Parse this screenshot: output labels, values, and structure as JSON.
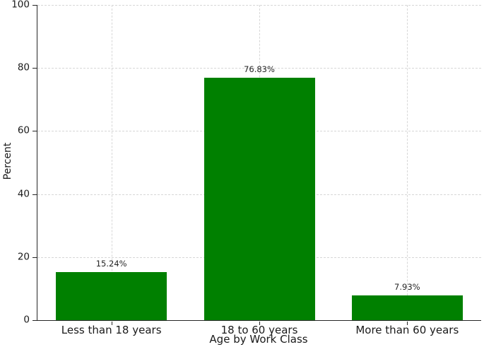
{
  "chart_data": {
    "type": "bar",
    "title": "",
    "categories": [
      "Less than 18 years",
      "18 to 60 years",
      "More than 60 years"
    ],
    "values": [
      15.24,
      76.83,
      7.93
    ],
    "bar_labels": [
      "15.24%",
      "76.83%",
      "7.93%"
    ],
    "xlabel": "Age by Work Class",
    "ylabel": "Percent",
    "ylim": [
      0,
      100
    ],
    "yticks": [
      0,
      20,
      40,
      60,
      80,
      100
    ],
    "bar_color": "#008000",
    "grid": "dashed horizontal lines at yticks and dashed vertical lines at category centers",
    "legend": "none",
    "bar_width_fraction": 0.75
  }
}
